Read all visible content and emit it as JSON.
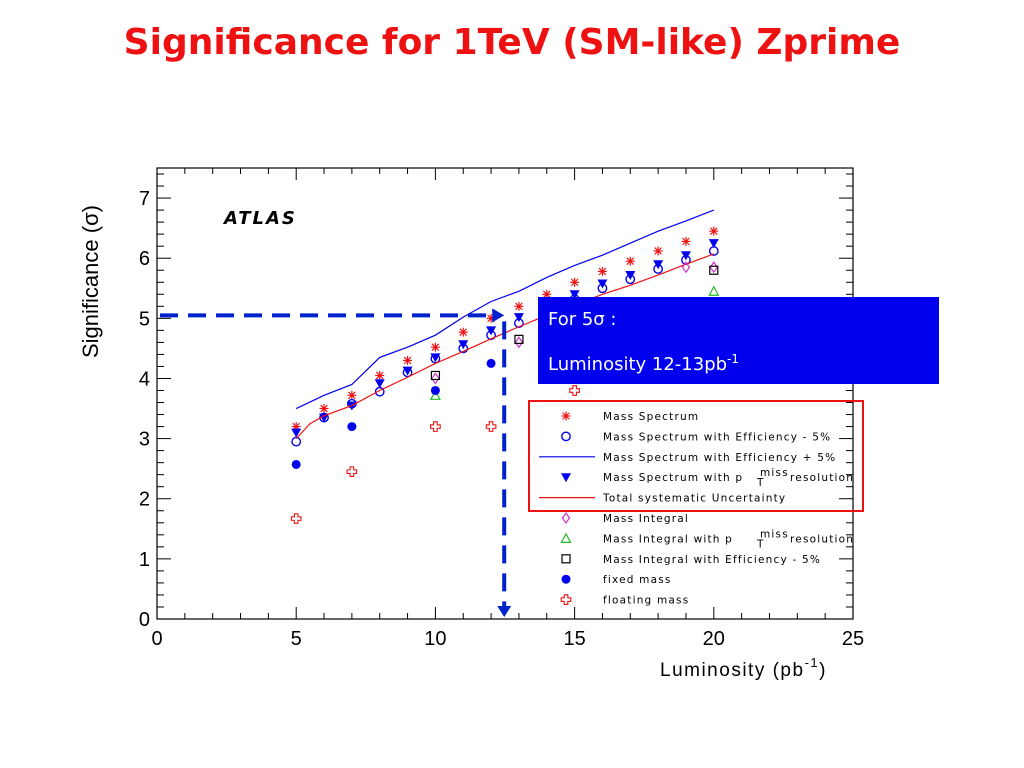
{
  "title": "Significance for 1TeV (SM-like) Zprime",
  "callout": {
    "line1": "For 5σ :",
    "line2_text": "Luminosity 12-13pb",
    "line2_sup": "-1"
  },
  "chart_data": {
    "type": "scatter",
    "watermark": "ATLAS",
    "xlabel": "Luminosity (pb",
    "xlabel_sup": "-1",
    "xlabel_close": ")",
    "ylabel": "Significance (σ)",
    "xlim": [
      0,
      25
    ],
    "ylim": [
      0,
      7.5
    ],
    "xticks": [
      0,
      5,
      10,
      15,
      20,
      25
    ],
    "yticks": [
      0,
      1,
      2,
      3,
      4,
      5,
      6,
      7
    ],
    "annotation": {
      "target_significance": 5.05,
      "luminosity": 12.4
    },
    "colors": {
      "title": "#ee1111",
      "blue": "#0000ee",
      "red": "#ee1111",
      "green": "#22bb22",
      "magenta": "#cc33cc",
      "dashed_arrow": "#0022cc"
    },
    "series": [
      {
        "name": "Mass Spectrum",
        "marker": "asterisk",
        "color": "#ee1111",
        "x": [
          5,
          6,
          7,
          8,
          9,
          10,
          11,
          12,
          13,
          14,
          15,
          16,
          17,
          18,
          19,
          20
        ],
        "y": [
          3.2,
          3.5,
          3.72,
          4.05,
          4.3,
          4.52,
          4.77,
          5.0,
          5.2,
          5.4,
          5.6,
          5.78,
          5.95,
          6.12,
          6.28,
          6.45
        ]
      },
      {
        "name": "Mass Spectrum with Efficiency - 5%",
        "marker": "open-circle",
        "color": "#0000ee",
        "x": [
          5,
          6,
          7,
          8,
          9,
          10,
          11,
          12,
          13,
          14,
          15,
          16,
          17,
          18,
          19,
          20
        ],
        "y": [
          2.95,
          3.35,
          3.58,
          3.78,
          4.1,
          4.33,
          4.5,
          4.72,
          4.92,
          5.12,
          5.32,
          5.5,
          5.65,
          5.82,
          5.97,
          6.12
        ]
      },
      {
        "name": "Mass Spectrum with Efficiency + 5%",
        "marker": "line",
        "color": "#0000ee",
        "x": [
          5,
          6,
          7,
          8,
          9,
          10,
          11,
          12,
          13,
          14,
          15,
          16,
          17,
          18,
          19,
          20
        ],
        "y": [
          3.5,
          3.72,
          3.9,
          4.35,
          4.52,
          4.72,
          5.02,
          5.28,
          5.45,
          5.68,
          5.88,
          6.05,
          6.25,
          6.45,
          6.62,
          6.8
        ]
      },
      {
        "name": "Mass Spectrum with p",
        "name_sup": "miss",
        "name_sub": "T",
        "name_end": "resolution",
        "marker": "filled-down-triangle",
        "color": "#0000ee",
        "x": [
          5,
          6,
          7,
          8,
          9,
          10,
          11,
          12,
          13,
          14,
          15,
          16,
          17,
          18,
          19,
          20
        ],
        "y": [
          3.1,
          3.35,
          3.55,
          3.92,
          4.13,
          4.35,
          4.57,
          4.8,
          5.02,
          5.22,
          5.4,
          5.58,
          5.72,
          5.9,
          6.05,
          6.25
        ]
      },
      {
        "name": "Total systematic Uncertainty",
        "marker": "line",
        "color": "#ee1111",
        "x": [
          5,
          5.5,
          6,
          7,
          8,
          9,
          10,
          11,
          12,
          13,
          14,
          15,
          16,
          17,
          18,
          19,
          20
        ],
        "y": [
          3.0,
          3.25,
          3.38,
          3.55,
          3.8,
          4.02,
          4.25,
          4.45,
          4.66,
          4.86,
          5.05,
          5.22,
          5.4,
          5.55,
          5.72,
          5.9,
          6.07
        ]
      },
      {
        "name": "Mass Integral",
        "marker": "open-diamond",
        "color": "#cc33cc",
        "x": [
          10,
          13,
          19,
          20
        ],
        "y": [
          4.0,
          4.6,
          5.85,
          5.85
        ]
      },
      {
        "name": "Mass Integral with p",
        "name_sup": "miss",
        "name_sub": "T",
        "name_end": "resolution",
        "marker": "open-up-triangle",
        "color": "#22bb22",
        "x": [
          10,
          20
        ],
        "y": [
          3.72,
          5.45
        ]
      },
      {
        "name": "Mass Integral with Efficiency - 5%",
        "marker": "open-square",
        "color": "#000000",
        "x": [
          10,
          13,
          20
        ],
        "y": [
          4.05,
          4.65,
          5.8
        ]
      },
      {
        "name": "fixed mass",
        "marker": "filled-circle",
        "color": "#0000ee",
        "x": [
          5,
          7,
          10,
          12
        ],
        "y": [
          2.57,
          3.2,
          3.8,
          4.25
        ]
      },
      {
        "name": "floating mass",
        "marker": "open-cross",
        "color": "#ee1111",
        "x": [
          5,
          7,
          10,
          12,
          15
        ],
        "y": [
          1.67,
          2.45,
          3.2,
          3.2,
          3.8
        ]
      }
    ]
  }
}
